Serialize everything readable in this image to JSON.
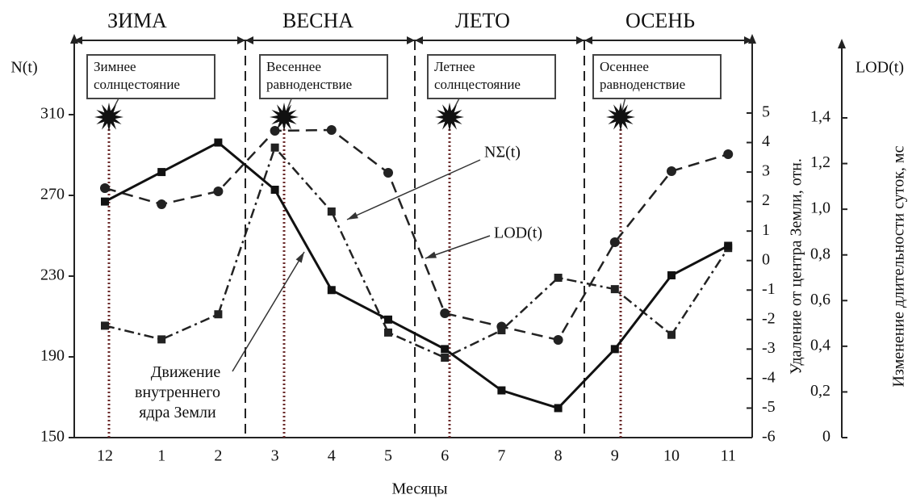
{
  "chart_data": {
    "type": "line",
    "seasons": [
      "ЗИМА",
      "ВЕСНА",
      "ЛЕТО",
      "ОСЕНЬ"
    ],
    "events": [
      [
        "Зимнее",
        "солнцестояние"
      ],
      [
        "Весеннее",
        "равноденствие"
      ],
      [
        "Летнее",
        "солнцестояние"
      ],
      [
        "Осеннее",
        "равноденствие"
      ]
    ],
    "y_label": "N(t)",
    "y3_label_top": "LOD(t)",
    "y2_label": "Удаление от центра Земли, отн.",
    "y3_label": "Изменение длительности суток, мс",
    "x_label": "Месяцы",
    "categories": [
      "12",
      "1",
      "2",
      "3",
      "4",
      "5",
      "6",
      "7",
      "8",
      "9",
      "10",
      "11"
    ],
    "ylim": [
      150,
      310
    ],
    "yticks": [
      150,
      190,
      230,
      270,
      310
    ],
    "y2lim": [
      -6,
      5
    ],
    "y2ticks": [
      -6,
      -5,
      -4,
      -3,
      -2,
      -1,
      0,
      1,
      2,
      3,
      4,
      5
    ],
    "y3lim": [
      0,
      1.4
    ],
    "y3ticks": [
      0,
      {
        "value": 0.2,
        "label": "0,2"
      },
      {
        "value": 0.4,
        "label": "0,4"
      },
      {
        "value": 0.6,
        "label": "0,6"
      },
      {
        "value": 0.8,
        "label": "0,8"
      },
      {
        "value": 1.0,
        "label": "1,0"
      },
      {
        "value": 1.2,
        "label": "1,2"
      },
      {
        "value": 1.4,
        "label": "1,4"
      }
    ],
    "series": [
      {
        "name": "NΣ(t)",
        "color": "#222",
        "values": [
          273.6,
          265.6,
          272,
          302,
          302.4,
          281.2,
          211.6,
          205,
          198.4,
          246.8,
          282,
          290.4
        ]
      },
      {
        "name": "LOD(t)",
        "color": "#222",
        "axis": "y3",
        "values": [
          0.49,
          0.43,
          0.54,
          1.27,
          0.99,
          0.46,
          0.35,
          0.47,
          0.7,
          0.65,
          0.45,
          0.83
        ]
      },
      {
        "name": "Движение внутреннего ядра Земли",
        "color": "#111",
        "axis": "y2",
        "values": [
          2,
          3,
          4,
          2.4,
          -1,
          -2,
          -3,
          -4.4,
          -5,
          -3,
          -0.5,
          0.5
        ]
      }
    ]
  }
}
